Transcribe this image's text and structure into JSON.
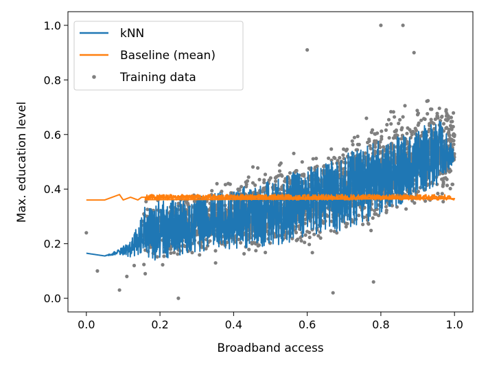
{
  "chart_data": {
    "type": "scatter",
    "title": "",
    "xlabel": "Broadband access",
    "ylabel": "Max. education level",
    "xlim": [
      -0.05,
      1.05
    ],
    "ylim": [
      -0.05,
      1.05
    ],
    "xticks": [
      "0.0",
      "0.2",
      "0.4",
      "0.6",
      "0.8",
      "1.0"
    ],
    "yticks": [
      "0.0",
      "0.2",
      "0.4",
      "0.6",
      "0.8",
      "1.0"
    ],
    "grid": false,
    "legend_position": "upper-left",
    "legend": [
      {
        "label": "kNN",
        "marker": "line",
        "color": "#1f77b4"
      },
      {
        "label": "Baseline (mean)",
        "marker": "line",
        "color": "#ff7f0e"
      },
      {
        "label": "Training data",
        "marker": "dot",
        "color": "#7f7f7f"
      }
    ],
    "series": [
      {
        "name": "Training data",
        "kind": "scatter",
        "color": "#7f7f7f",
        "trend": {
          "x": [
            0.15,
            0.3,
            0.5,
            0.7,
            0.9,
            1.0
          ],
          "y_mean": [
            0.24,
            0.27,
            0.32,
            0.4,
            0.52,
            0.55
          ],
          "spread": [
            0.08,
            0.09,
            0.11,
            0.13,
            0.14,
            0.12
          ]
        },
        "outliers": [
          {
            "x": 0.0,
            "y": 0.24
          },
          {
            "x": 0.03,
            "y": 0.1
          },
          {
            "x": 0.09,
            "y": 0.03
          },
          {
            "x": 0.11,
            "y": 0.08
          },
          {
            "x": 0.13,
            "y": 0.12
          },
          {
            "x": 0.16,
            "y": 0.09
          },
          {
            "x": 0.25,
            "y": 0.0
          },
          {
            "x": 0.6,
            "y": 0.91
          },
          {
            "x": 0.67,
            "y": 0.02
          },
          {
            "x": 0.78,
            "y": 0.06
          },
          {
            "x": 0.8,
            "y": 1.0
          },
          {
            "x": 0.86,
            "y": 1.0
          },
          {
            "x": 0.89,
            "y": 0.9
          }
        ]
      },
      {
        "name": "kNN",
        "kind": "line",
        "color": "#1f77b4",
        "x": [
          0.0,
          0.05,
          0.09,
          0.12,
          0.14,
          0.16,
          0.2,
          0.3,
          0.4,
          0.5,
          0.6,
          0.7,
          0.8,
          0.9,
          0.96,
          1.0
        ],
        "y_mean": [
          0.165,
          0.155,
          0.17,
          0.18,
          0.22,
          0.24,
          0.25,
          0.27,
          0.29,
          0.31,
          0.35,
          0.39,
          0.44,
          0.5,
          0.54,
          0.52
        ],
        "spread": [
          0.0,
          0.0,
          0.01,
          0.03,
          0.06,
          0.1,
          0.11,
          0.1,
          0.11,
          0.12,
          0.13,
          0.14,
          0.14,
          0.12,
          0.12,
          0.02
        ]
      },
      {
        "name": "Baseline (mean)",
        "kind": "line",
        "color": "#ff7f0e",
        "x": [
          0.0,
          0.05,
          0.09,
          0.1,
          0.12,
          0.14,
          0.15,
          0.2,
          1.0
        ],
        "y": [
          0.36,
          0.36,
          0.38,
          0.36,
          0.37,
          0.36,
          0.37,
          0.37,
          0.365
        ],
        "band": {
          "from": 0.16,
          "to": 0.99,
          "y": [
            0.36,
            0.38
          ]
        }
      }
    ]
  }
}
